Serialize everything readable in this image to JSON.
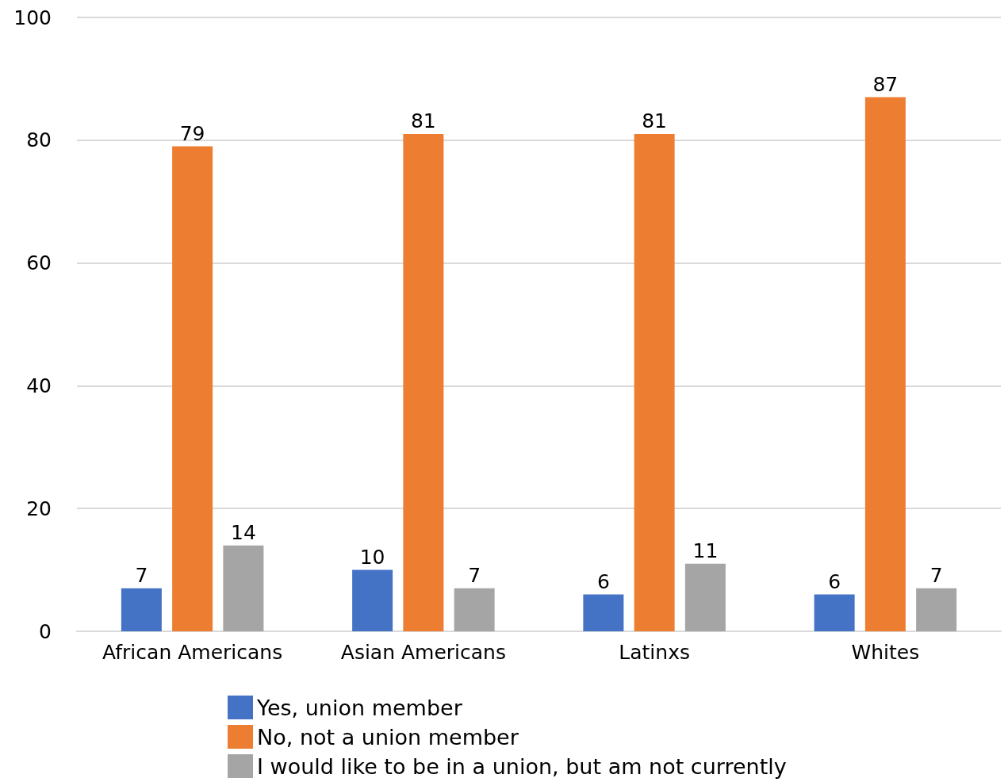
{
  "chart_data": {
    "type": "bar",
    "categories": [
      "African Americans",
      "Asian Americans",
      "Latinxs",
      "Whites"
    ],
    "series": [
      {
        "name": "Yes, union member",
        "color": "#4472c4",
        "values": [
          7,
          10,
          6,
          6
        ]
      },
      {
        "name": "No, not a union member",
        "color": "#ed7d31",
        "values": [
          79,
          81,
          81,
          87
        ]
      },
      {
        "name": "I would like to be in a union, but am not currently",
        "color": "#a5a5a5",
        "values": [
          14,
          7,
          11,
          7
        ]
      }
    ],
    "ylim": [
      0,
      100
    ],
    "yticks": [
      0,
      20,
      40,
      60,
      80,
      100
    ],
    "grid": "y",
    "legend": "bottom",
    "data_labels": true
  }
}
